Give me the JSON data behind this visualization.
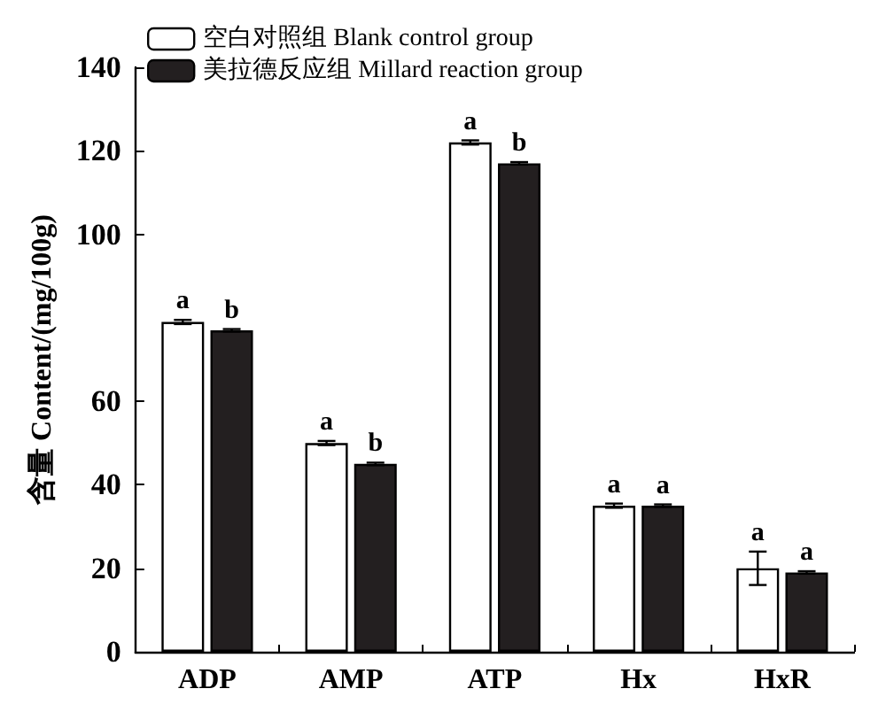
{
  "chart_data": {
    "type": "bar",
    "ylabel": "含量 Content/(mg/100g)",
    "categories": [
      "ADP",
      "AMP",
      "ATP",
      "Hx",
      "HxR"
    ],
    "series": [
      {
        "name": "空白对照组 Blank control group",
        "color": "#ffffff",
        "values": [
          79,
          50,
          122,
          35,
          20
        ],
        "errors": [
          0.5,
          0.5,
          0.5,
          0.5,
          4
        ],
        "value_labels": [
          "a",
          "a",
          "a",
          "a",
          "a"
        ]
      },
      {
        "name": "美拉德反应组 Millard reaction group",
        "color": "#231f20",
        "values": [
          77,
          45,
          117,
          35,
          19
        ],
        "errors": [
          0.3,
          0.3,
          0.3,
          0.3,
          0.3
        ],
        "value_labels": [
          "b",
          "b",
          "b",
          "a",
          "a"
        ]
      }
    ],
    "ylim": [
      0,
      140
    ],
    "yticks": [
      0,
      20,
      40,
      60,
      100,
      120,
      140
    ],
    "grid": false,
    "legend": "top left"
  }
}
